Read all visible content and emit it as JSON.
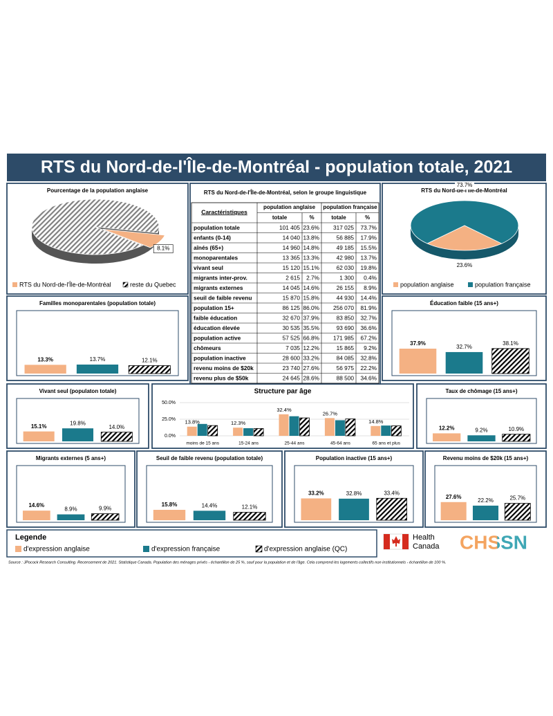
{
  "title": "RTS du Nord-de-l'Île-de-Montréal - population totale, 2021",
  "chart_data": [
    {
      "type": "pie",
      "title": "Pourcentage de la population anglaise",
      "categories": [
        "RTS du Nord-de-l'Île-de-Montréal",
        "reste du Quebec"
      ],
      "values": [
        8.1,
        91.9
      ],
      "value_labels": [
        "8.1%",
        null
      ],
      "colors": [
        "#f4b183",
        "#808080"
      ],
      "hatched": [
        false,
        true
      ]
    },
    {
      "type": "pie",
      "title": "RTS du Nord-de-l'Île-de-Montréal",
      "categories": [
        "population anglaise",
        "population française"
      ],
      "values": [
        23.6,
        73.7
      ],
      "value_labels": [
        "23.6%",
        "73.7%"
      ],
      "colors": [
        "#f4b183",
        "#1b7a8c"
      ],
      "hatched": [
        false,
        false
      ]
    },
    {
      "type": "bar",
      "title": "Familles monoparentales (population totale)",
      "values": [
        13.3,
        13.7,
        12.1
      ],
      "value_labels": [
        "13.3%",
        "13.7%",
        "12.1%"
      ]
    },
    {
      "type": "bar",
      "title": "Éducation faible (15 ans+)",
      "values": [
        37.9,
        32.7,
        38.1
      ],
      "value_labels": [
        "37.9%",
        "32.7%",
        "38.1%"
      ]
    },
    {
      "type": "bar",
      "title": "Vivant seul (populaton totale)",
      "values": [
        15.1,
        19.8,
        14.0
      ],
      "value_labels": [
        "15.1%",
        "19.8%",
        "14.0%"
      ]
    },
    {
      "type": "grouped",
      "title": "Structure par âge",
      "categories": [
        "moins de 15 ans",
        "15-24 ans",
        "25-44 ans",
        "45-64 ans",
        "65 ans et plus"
      ],
      "series": [
        {
          "values": [
            13.8,
            12.3,
            32.4,
            26.7,
            14.8
          ],
          "value_labels": [
            "13.8%",
            "12.3%",
            "32.4%",
            "26.7%",
            "14.8%"
          ]
        },
        {
          "values": [
            17.9,
            11.5,
            29.5,
            23.5,
            15.5
          ]
        },
        {
          "values": [
            15.5,
            11.0,
            27.0,
            25.5,
            15.0
          ]
        }
      ],
      "ylim": [
        0,
        50
      ],
      "yticks": [
        {
          "value": 0,
          "label": "0.0%"
        },
        {
          "value": 25,
          "label": "25.0%"
        },
        {
          "value": 50,
          "label": "50.0%"
        }
      ],
      "grid": true
    },
    {
      "type": "bar",
      "title": "Taux de chômage (15 ans+)",
      "values": [
        12.2,
        9.2,
        10.9
      ],
      "value_labels": [
        "12.2%",
        "9.2%",
        "10.9%"
      ]
    },
    {
      "type": "bar",
      "title": "Migrants externes (5 ans+)",
      "values": [
        14.6,
        8.9,
        9.9
      ],
      "value_labels": [
        "14.6%",
        "8.9%",
        "9.9%"
      ]
    },
    {
      "type": "bar",
      "title": "Seuil de faible revenu (population totale)",
      "values": [
        15.8,
        14.4,
        12.1
      ],
      "value_labels": [
        "15.8%",
        "14.4%",
        "12.1%"
      ]
    },
    {
      "type": "bar",
      "title": "Population inactive (15 ans+)",
      "values": [
        33.2,
        32.8,
        33.4
      ],
      "value_labels": [
        "33.2%",
        "32.8%",
        "33.4%"
      ]
    },
    {
      "type": "bar",
      "title": "Revenu moins de $20k (15 ans+)",
      "values": [
        27.6,
        22.2,
        25.7
      ],
      "value_labels": [
        "27.6%",
        "22.2%",
        "25.7%"
      ]
    }
  ],
  "table": {
    "title": "RTS du Nord-de-l'Île-de-Montréal, selon le groupe linguistique",
    "header": "Caractéristiques",
    "groups": [
      "population anglaise",
      "population française"
    ],
    "subheaders": [
      "totale",
      "%",
      "totale",
      "%"
    ],
    "rows": [
      [
        "population totale",
        "101 405",
        "23.6%",
        "317 025",
        "73.7%"
      ],
      [
        "enfants (0-14)",
        "14 040",
        "13.8%",
        "56 885",
        "17.9%"
      ],
      [
        "aînés (65+)",
        "14 960",
        "14.8%",
        "49 185",
        "15.5%"
      ],
      [
        "monoparentales",
        "13 365",
        "13.3%",
        "42 980",
        "13.7%"
      ],
      [
        "vivant seul",
        "15 120",
        "15.1%",
        "62 030",
        "19.8%"
      ],
      [
        "migrants inter-prov.",
        "2 615",
        "2.7%",
        "1 300",
        "0.4%"
      ],
      [
        "migrants externes",
        "14 045",
        "14.6%",
        "26 155",
        "8.9%"
      ],
      [
        "seuil de faible revenu",
        "15 870",
        "15.8%",
        "44 930",
        "14.4%"
      ],
      [
        "population 15+",
        "86 125",
        "86.0%",
        "256 070",
        "81.9%"
      ],
      [
        "faible éducation",
        "32 670",
        "37.9%",
        "83 850",
        "32.7%"
      ],
      [
        "éducation élevée",
        "30 535",
        "35.5%",
        "93 690",
        "36.6%"
      ],
      [
        "population active",
        "57 525",
        "66.8%",
        "171 985",
        "67.2%"
      ],
      [
        "chômeurs",
        "7 035",
        "12.2%",
        "15 865",
        "9.2%"
      ],
      [
        "population inactive",
        "28 600",
        "33.2%",
        "84 085",
        "32.8%"
      ],
      [
        "revenu moins de $20k",
        "23 740",
        "27.6%",
        "56 975",
        "22.2%"
      ],
      [
        "revenu plus de $50k",
        "24 645",
        "28.6%",
        "88 500",
        "34.6%"
      ]
    ]
  },
  "legend": {
    "title": "Legende",
    "series": [
      {
        "name": "d'expression anglaise",
        "color": "#f4b183",
        "hatched": false
      },
      {
        "name": "d'expression française",
        "color": "#1b7a8c",
        "hatched": false
      },
      {
        "name": "d'expression anglaise (QC)",
        "color": "#000000",
        "hatched": true
      }
    ]
  },
  "logos": {
    "health": "Health",
    "canada": "Canada",
    "chssn": "CHSSN"
  },
  "source": "Source : JPocock Research Consulting. Recensement de 2021. Statistique Canada. Population des ménages privés - échantillon de 25 %, sauf pour la population et de l'âge. Cela comprend les logements collectifs non institutionnels - échantillon de 100 %."
}
